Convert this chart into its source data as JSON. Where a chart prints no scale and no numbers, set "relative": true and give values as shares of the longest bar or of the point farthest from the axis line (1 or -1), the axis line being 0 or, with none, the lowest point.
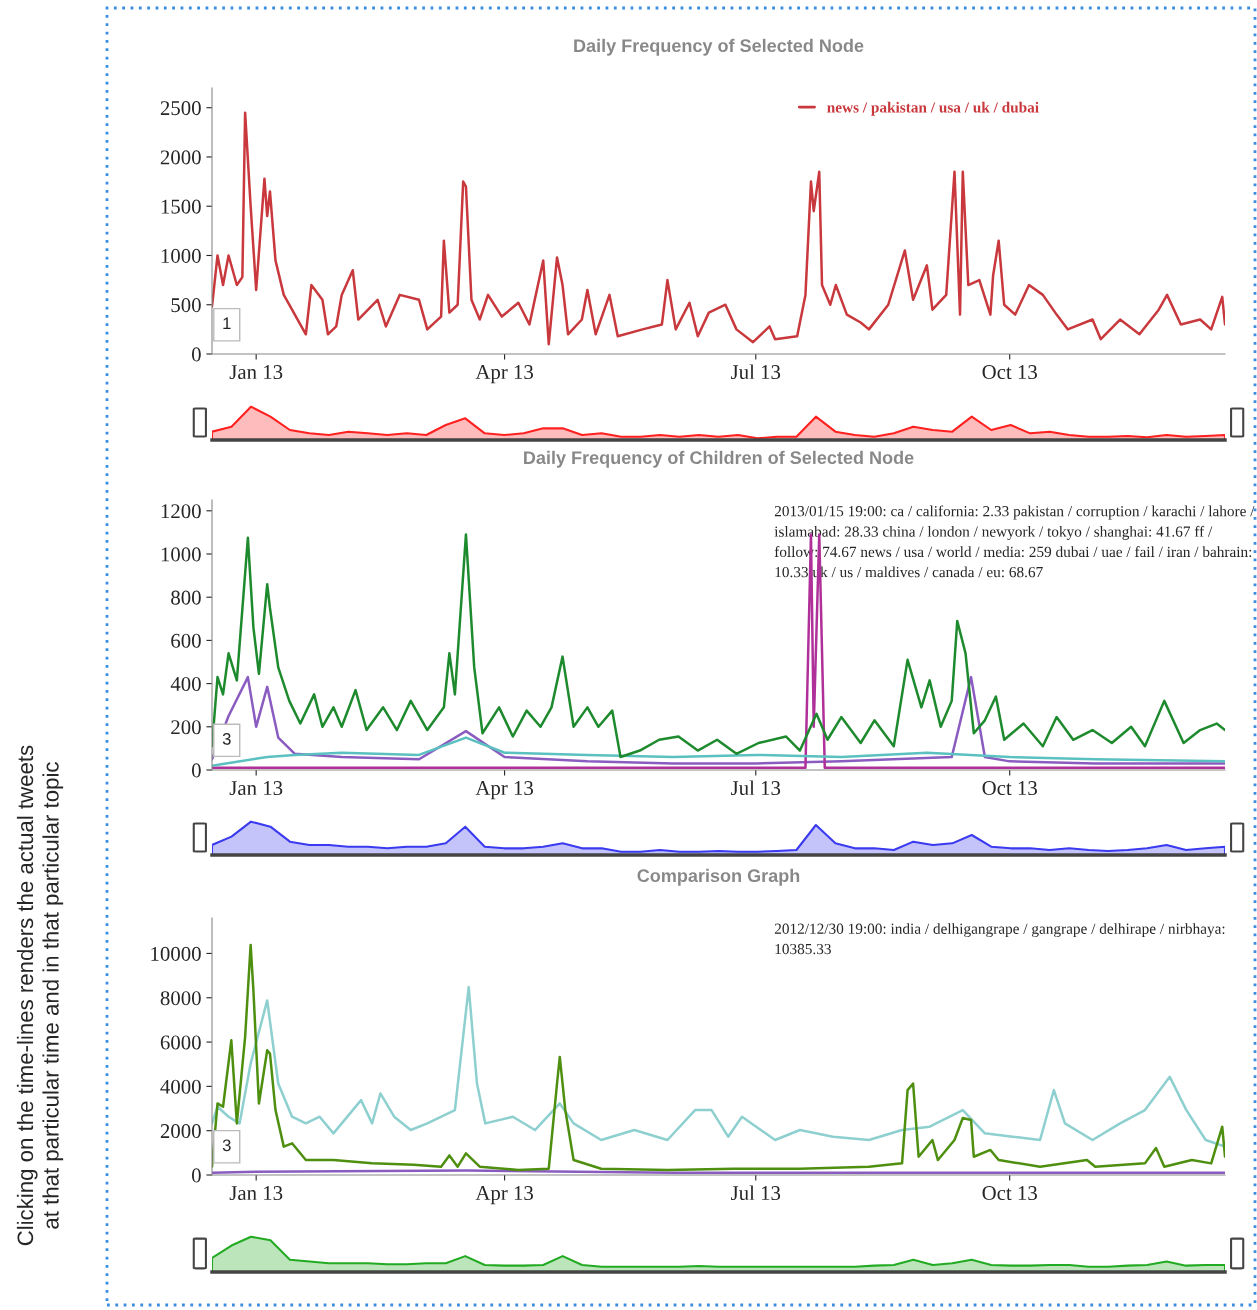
{
  "chart_data": [
    {
      "type": "other",
      "annotations": [
        "Clicking on the time-lines renders the actual tweets\nat that particular time and in that particular topic"
      ]
    },
    {
      "type": "line",
      "title": "Daily Frequency of Selected Node",
      "xlim": [
        "2012-12-16",
        "2013-12-18"
      ],
      "ylim": [
        0,
        2700
      ],
      "yticks": [
        0,
        500,
        1000,
        1500,
        2000,
        2500
      ],
      "xticks": [
        {
          "value": "2013-01-01",
          "label": "Jan 13"
        },
        {
          "value": "2013-04-01",
          "label": "Apr 13"
        },
        {
          "value": "2013-07-01",
          "label": "Jul 13"
        },
        {
          "value": "2013-10-01",
          "label": "Oct 13"
        }
      ],
      "legend": "top right",
      "grid": false,
      "annotations": [
        "1"
      ],
      "series": [
        {
          "name": "news / pakistan / usa / uk / dubai",
          "color": "#c8383c",
          "x": [
            "2012-12-16",
            "2012-12-18",
            "2012-12-20",
            "2012-12-22",
            "2012-12-25",
            "2012-12-27",
            "2012-12-28",
            "2012-12-30",
            "2013-01-01",
            "2013-01-04",
            "2013-01-05",
            "2013-01-06",
            "2013-01-08",
            "2013-01-11",
            "2013-01-14",
            "2013-01-19",
            "2013-01-21",
            "2013-01-25",
            "2013-01-27",
            "2013-01-30",
            "2013-02-01",
            "2013-02-05",
            "2013-02-07",
            "2013-02-14",
            "2013-02-17",
            "2013-02-22",
            "2013-03-01",
            "2013-03-04",
            "2013-03-09",
            "2013-03-10",
            "2013-03-12",
            "2013-03-15",
            "2013-03-17",
            "2013-03-18",
            "2013-03-20",
            "2013-03-23",
            "2013-03-26",
            "2013-03-31",
            "2013-04-06",
            "2013-04-10",
            "2013-04-15",
            "2013-04-17",
            "2013-04-20",
            "2013-04-22",
            "2013-04-24",
            "2013-04-29",
            "2013-05-01",
            "2013-05-04",
            "2013-05-09",
            "2013-05-12",
            "2013-05-21",
            "2013-05-28",
            "2013-05-30",
            "2013-06-02",
            "2013-06-07",
            "2013-06-10",
            "2013-06-14",
            "2013-06-20",
            "2013-06-24",
            "2013-06-30",
            "2013-07-06",
            "2013-07-08",
            "2013-07-16",
            "2013-07-19",
            "2013-07-21",
            "2013-07-22",
            "2013-07-24",
            "2013-07-25",
            "2013-07-28",
            "2013-07-30",
            "2013-08-03",
            "2013-08-08",
            "2013-08-11",
            "2013-08-18",
            "2013-08-24",
            "2013-08-27",
            "2013-09-01",
            "2013-09-03",
            "2013-09-08",
            "2013-09-11",
            "2013-09-13",
            "2013-09-14",
            "2013-09-16",
            "2013-09-20",
            "2013-09-24",
            "2013-09-25",
            "2013-09-27",
            "2013-09-29",
            "2013-10-03",
            "2013-10-08",
            "2013-10-13",
            "2013-10-18",
            "2013-10-22",
            "2013-10-31",
            "2013-11-03",
            "2013-11-10",
            "2013-11-17",
            "2013-11-24",
            "2013-11-27",
            "2013-12-02",
            "2013-12-09",
            "2013-12-13",
            "2013-12-17",
            "2013-12-18"
          ],
          "values": [
            480,
            1000,
            700,
            1000,
            700,
            780,
            2450,
            1500,
            650,
            1780,
            1400,
            1650,
            950,
            600,
            450,
            200,
            700,
            550,
            200,
            280,
            600,
            850,
            350,
            550,
            280,
            600,
            550,
            250,
            380,
            1150,
            420,
            500,
            1750,
            1700,
            550,
            350,
            600,
            380,
            520,
            300,
            950,
            100,
            980,
            700,
            200,
            350,
            650,
            200,
            600,
            180,
            250,
            300,
            750,
            250,
            520,
            180,
            420,
            500,
            250,
            120,
            280,
            150,
            180,
            600,
            1750,
            1450,
            1850,
            700,
            500,
            700,
            400,
            320,
            250,
            500,
            1050,
            550,
            900,
            450,
            600,
            1850,
            400,
            1850,
            700,
            750,
            400,
            800,
            1150,
            500,
            400,
            700,
            600,
            400,
            250,
            350,
            150,
            350,
            200,
            450,
            600,
            300,
            350,
            250,
            580,
            300
          ]
        }
      ]
    },
    {
      "type": "area",
      "relative": true,
      "series": [
        {
          "color": "#ff2020",
          "values": [
            0.25,
            0.4,
            1.0,
            0.7,
            0.3,
            0.2,
            0.15,
            0.25,
            0.2,
            0.15,
            0.2,
            0.15,
            0.45,
            0.65,
            0.2,
            0.15,
            0.2,
            0.35,
            0.35,
            0.15,
            0.2,
            0.1,
            0.1,
            0.15,
            0.1,
            0.15,
            0.1,
            0.15,
            0.05,
            0.1,
            0.1,
            0.7,
            0.25,
            0.15,
            0.1,
            0.2,
            0.4,
            0.3,
            0.25,
            0.7,
            0.3,
            0.45,
            0.2,
            0.25,
            0.15,
            0.1,
            0.1,
            0.12,
            0.08,
            0.15,
            0.1,
            0.12,
            0.15
          ]
        }
      ],
      "categories": [
        null,
        null,
        null,
        null,
        null,
        null,
        null,
        null,
        null,
        null,
        null,
        null,
        null,
        null,
        null,
        null,
        null,
        null,
        null,
        null,
        null,
        null,
        null,
        null,
        null,
        null,
        null,
        null,
        null,
        null,
        null,
        null,
        null,
        null,
        null,
        null,
        null,
        null,
        null,
        null,
        null,
        null,
        null,
        null,
        null,
        null,
        null,
        null,
        null,
        null,
        null,
        null,
        null
      ]
    },
    {
      "type": "line",
      "title": "Daily Frequency of Children of Selected Node",
      "xlim": [
        "2012-12-16",
        "2013-12-18"
      ],
      "ylim": [
        0,
        1250
      ],
      "yticks": [
        0,
        200,
        400,
        600,
        800,
        1000,
        1200
      ],
      "xticks": [
        {
          "value": "2013-01-01",
          "label": "Jan 13"
        },
        {
          "value": "2013-04-01",
          "label": "Apr 13"
        },
        {
          "value": "2013-07-01",
          "label": "Jul 13"
        },
        {
          "value": "2013-10-01",
          "label": "Oct 13"
        }
      ],
      "grid": false,
      "annotations": [
        "2013/01/15 19:00: ca / california: 2.33 pakistan / corruption / karachi / lahore / islamabad: 28.33 china / london / newyork / tokyo / shanghai: 41.67 ff / follow: 74.67 news / usa / world / media: 259 dubai / uae / fail / iran / bahrain: 10.33 uk / us / maldives / canada / eu: 68.67",
        "3"
      ],
      "series": [
        {
          "color": "#8a5cc0",
          "x": [
            "2012-12-16",
            "2012-12-22",
            "2012-12-29",
            "2013-01-01",
            "2013-01-05",
            "2013-01-09",
            "2013-01-15",
            "2013-02-01",
            "2013-03-01",
            "2013-03-18",
            "2013-04-01",
            "2013-05-01",
            "2013-06-01",
            "2013-07-01",
            "2013-08-01",
            "2013-09-10",
            "2013-09-17",
            "2013-09-22",
            "2013-10-01",
            "2013-11-01",
            "2013-12-18"
          ],
          "values": [
            50,
            250,
            430,
            200,
            385,
            150,
            75,
            60,
            50,
            180,
            60,
            40,
            30,
            30,
            40,
            60,
            430,
            60,
            40,
            30,
            30
          ]
        },
        {
          "color": "#b0309a",
          "x": [
            "2012-12-16",
            "2013-07-19",
            "2013-07-21",
            "2013-07-22",
            "2013-07-24",
            "2013-07-26",
            "2013-12-18"
          ],
          "values": [
            10,
            10,
            1090,
            200,
            1090,
            10,
            10
          ]
        },
        {
          "color": "#5bc0c0",
          "x": [
            "2012-12-16",
            "2013-01-05",
            "2013-01-15",
            "2013-02-01",
            "2013-03-01",
            "2013-03-18",
            "2013-04-01",
            "2013-05-01",
            "2013-06-01",
            "2013-07-01",
            "2013-08-01",
            "2013-09-01",
            "2013-10-01",
            "2013-11-01",
            "2013-12-18"
          ],
          "values": [
            20,
            60,
            69,
            80,
            70,
            150,
            80,
            70,
            60,
            70,
            60,
            80,
            60,
            50,
            40
          ]
        },
        {
          "color": "#1e8a2e",
          "x": [
            "2012-12-16",
            "2012-12-18",
            "2012-12-20",
            "2012-12-22",
            "2012-12-25",
            "2012-12-29",
            "2012-12-31",
            "2013-01-02",
            "2013-01-05",
            "2013-01-06",
            "2013-01-09",
            "2013-01-13",
            "2013-01-17",
            "2013-01-22",
            "2013-01-25",
            "2013-01-29",
            "2013-02-01",
            "2013-02-06",
            "2013-02-10",
            "2013-02-16",
            "2013-02-21",
            "2013-02-26",
            "2013-03-04",
            "2013-03-10",
            "2013-03-12",
            "2013-03-14",
            "2013-03-18",
            "2013-03-21",
            "2013-03-24",
            "2013-03-30",
            "2013-04-04",
            "2013-04-09",
            "2013-04-14",
            "2013-04-18",
            "2013-04-22",
            "2013-04-26",
            "2013-05-01",
            "2013-05-05",
            "2013-05-10",
            "2013-05-13",
            "2013-05-20",
            "2013-05-27",
            "2013-06-03",
            "2013-06-10",
            "2013-06-17",
            "2013-06-24",
            "2013-07-02",
            "2013-07-12",
            "2013-07-17",
            "2013-07-23",
            "2013-07-27",
            "2013-08-01",
            "2013-08-08",
            "2013-08-13",
            "2013-08-20",
            "2013-08-25",
            "2013-08-30",
            "2013-09-02",
            "2013-09-06",
            "2013-09-10",
            "2013-09-12",
            "2013-09-15",
            "2013-09-18",
            "2013-09-22",
            "2013-09-26",
            "2013-09-29",
            "2013-10-06",
            "2013-10-13",
            "2013-10-18",
            "2013-10-24",
            "2013-10-31",
            "2013-11-07",
            "2013-11-14",
            "2013-11-19",
            "2013-11-26",
            "2013-12-03",
            "2013-12-09",
            "2013-12-15",
            "2013-12-18"
          ],
          "values": [
            110,
            430,
            350,
            540,
            415,
            1075,
            660,
            445,
            860,
            750,
            475,
            320,
            215,
            350,
            200,
            290,
            200,
            370,
            185,
            290,
            185,
            320,
            185,
            290,
            540,
            350,
            1090,
            475,
            170,
            290,
            155,
            275,
            200,
            290,
            525,
            200,
            290,
            200,
            275,
            60,
            90,
            140,
            155,
            90,
            140,
            75,
            125,
            155,
            90,
            260,
            140,
            245,
            125,
            230,
            110,
            510,
            290,
            415,
            200,
            320,
            690,
            540,
            170,
            230,
            340,
            140,
            215,
            110,
            245,
            140,
            185,
            125,
            200,
            110,
            320,
            125,
            185,
            215,
            185
          ]
        }
      ]
    },
    {
      "type": "area",
      "relative": true,
      "series": [
        {
          "color": "#3a3af0",
          "values": [
            0.3,
            0.55,
            1.0,
            0.85,
            0.4,
            0.3,
            0.3,
            0.25,
            0.25,
            0.2,
            0.25,
            0.25,
            0.35,
            0.85,
            0.25,
            0.2,
            0.2,
            0.25,
            0.35,
            0.2,
            0.2,
            0.1,
            0.1,
            0.15,
            0.1,
            0.1,
            0.12,
            0.1,
            0.1,
            0.12,
            0.15,
            0.9,
            0.35,
            0.2,
            0.2,
            0.15,
            0.4,
            0.3,
            0.35,
            0.6,
            0.25,
            0.2,
            0.2,
            0.15,
            0.2,
            0.15,
            0.12,
            0.15,
            0.2,
            0.3,
            0.15,
            0.2,
            0.25
          ]
        }
      ],
      "categories": [
        null,
        null,
        null,
        null,
        null,
        null,
        null,
        null,
        null,
        null,
        null,
        null,
        null,
        null,
        null,
        null,
        null,
        null,
        null,
        null,
        null,
        null,
        null,
        null,
        null,
        null,
        null,
        null,
        null,
        null,
        null,
        null,
        null,
        null,
        null,
        null,
        null,
        null,
        null,
        null,
        null,
        null,
        null,
        null,
        null,
        null,
        null,
        null,
        null,
        null,
        null,
        null,
        null
      ]
    },
    {
      "type": "line",
      "title": "Comparison Graph",
      "xlim": [
        "2012-12-16",
        "2013-12-18"
      ],
      "ylim": [
        0,
        11600
      ],
      "yticks": [
        0,
        2000,
        4000,
        6000,
        8000,
        10000
      ],
      "xticks": [
        {
          "value": "2013-01-01",
          "label": "Jan 13"
        },
        {
          "value": "2013-04-01",
          "label": "Apr 13"
        },
        {
          "value": "2013-07-01",
          "label": "Jul 13"
        },
        {
          "value": "2013-10-01",
          "label": "Oct 13"
        }
      ],
      "grid": false,
      "annotations": [
        "2012/12/30 19:00: india / delhigangrape / gangrape / delhirape / nirbhaya: 10385.33",
        "3"
      ],
      "series": [
        {
          "color": "#8a5cc0",
          "x": [
            "2012-12-16",
            "2013-01-01",
            "2013-03-18",
            "2013-06-01",
            "2013-12-18"
          ],
          "values": [
            100,
            150,
            200,
            100,
            100
          ]
        },
        {
          "color": "#8ecfcf",
          "x": [
            "2012-12-16",
            "2012-12-18",
            "2012-12-22",
            "2012-12-26",
            "2012-12-30",
            "2013-01-05",
            "2013-01-09",
            "2013-01-14",
            "2013-01-19",
            "2013-01-24",
            "2013-01-29",
            "2013-02-08",
            "2013-02-12",
            "2013-02-15",
            "2013-02-20",
            "2013-02-26",
            "2013-03-04",
            "2013-03-14",
            "2013-03-19",
            "2013-03-22",
            "2013-03-25",
            "2013-04-04",
            "2013-04-12",
            "2013-04-21",
            "2013-04-26",
            "2013-05-06",
            "2013-05-18",
            "2013-05-30",
            "2013-06-09",
            "2013-06-15",
            "2013-06-21",
            "2013-06-26",
            "2013-07-08",
            "2013-07-17",
            "2013-07-29",
            "2013-08-11",
            "2013-08-23",
            "2013-09-02",
            "2013-09-14",
            "2013-09-22",
            "2013-10-02",
            "2013-10-12",
            "2013-10-17",
            "2013-10-21",
            "2013-10-31",
            "2013-11-10",
            "2013-11-19",
            "2013-11-28",
            "2013-12-04",
            "2013-12-11",
            "2013-12-18"
          ],
          "values": [
            2330,
            3080,
            2630,
            2330,
            5030,
            7880,
            4130,
            2630,
            2330,
            2630,
            1880,
            3380,
            2330,
            3680,
            2630,
            2030,
            2330,
            2930,
            8480,
            4130,
            2330,
            2630,
            2030,
            3230,
            2330,
            1580,
            2030,
            1580,
            2930,
            2930,
            1730,
            2630,
            1580,
            2030,
            1730,
            1580,
            2030,
            2180,
            2930,
            1880,
            1730,
            1580,
            3830,
            2330,
            1580,
            2330,
            2930,
            4430,
            2930,
            1580,
            1280
          ]
        },
        {
          "color": "#4e8f10",
          "x": [
            "2012-12-16",
            "2012-12-18",
            "2012-12-20",
            "2012-12-23",
            "2012-12-25",
            "2012-12-28",
            "2012-12-30",
            "2012-12-31",
            "2013-01-02",
            "2013-01-05",
            "2013-01-06",
            "2013-01-08",
            "2013-01-11",
            "2013-01-14",
            "2013-01-19",
            "2013-01-29",
            "2013-02-12",
            "2013-02-27",
            "2013-03-09",
            "2013-03-12",
            "2013-03-15",
            "2013-03-18",
            "2013-03-23",
            "2013-04-06",
            "2013-04-17",
            "2013-04-20",
            "2013-04-21",
            "2013-04-23",
            "2013-04-26",
            "2013-05-06",
            "2013-05-30",
            "2013-06-23",
            "2013-07-17",
            "2013-08-11",
            "2013-08-23",
            "2013-08-25",
            "2013-08-27",
            "2013-08-29",
            "2013-09-03",
            "2013-09-05",
            "2013-09-11",
            "2013-09-14",
            "2013-09-17",
            "2013-09-18",
            "2013-09-24",
            "2013-09-27",
            "2013-10-12",
            "2013-10-29",
            "2013-11-01",
            "2013-11-19",
            "2013-11-23",
            "2013-11-26",
            "2013-12-06",
            "2013-12-13",
            "2013-12-17",
            "2013-12-18"
          ],
          "values": [
            375,
            3230,
            3080,
            6080,
            2330,
            6230,
            10385.33,
            8330,
            3230,
            5630,
            5480,
            2930,
            1280,
            1430,
            675,
            675,
            525,
            465,
            375,
            885,
            375,
            975,
            375,
            225,
            285,
            4130,
            5330,
            2930,
            675,
            285,
            225,
            285,
            285,
            375,
            525,
            3830,
            4130,
            825,
            1580,
            675,
            1580,
            2570,
            2480,
            825,
            1130,
            675,
            375,
            675,
            375,
            525,
            1215,
            375,
            675,
            525,
            2180,
            825
          ]
        }
      ]
    },
    {
      "type": "area",
      "relative": true,
      "series": [
        {
          "color": "#22aa22",
          "values": [
            0.4,
            0.75,
            1.0,
            0.9,
            0.35,
            0.3,
            0.25,
            0.25,
            0.25,
            0.22,
            0.22,
            0.25,
            0.25,
            0.45,
            0.2,
            0.18,
            0.18,
            0.2,
            0.45,
            0.2,
            0.15,
            0.15,
            0.15,
            0.15,
            0.15,
            0.17,
            0.15,
            0.15,
            0.15,
            0.15,
            0.15,
            0.15,
            0.15,
            0.15,
            0.18,
            0.2,
            0.35,
            0.2,
            0.25,
            0.35,
            0.2,
            0.18,
            0.18,
            0.2,
            0.2,
            0.15,
            0.15,
            0.18,
            0.2,
            0.3,
            0.18,
            0.2,
            0.2
          ]
        }
      ],
      "categories": [
        null,
        null,
        null,
        null,
        null,
        null,
        null,
        null,
        null,
        null,
        null,
        null,
        null,
        null,
        null,
        null,
        null,
        null,
        null,
        null,
        null,
        null,
        null,
        null,
        null,
        null,
        null,
        null,
        null,
        null,
        null,
        null,
        null,
        null,
        null,
        null,
        null,
        null,
        null,
        null,
        null,
        null,
        null,
        null,
        null,
        null,
        null,
        null,
        null,
        null,
        null,
        null,
        null
      ]
    }
  ]
}
